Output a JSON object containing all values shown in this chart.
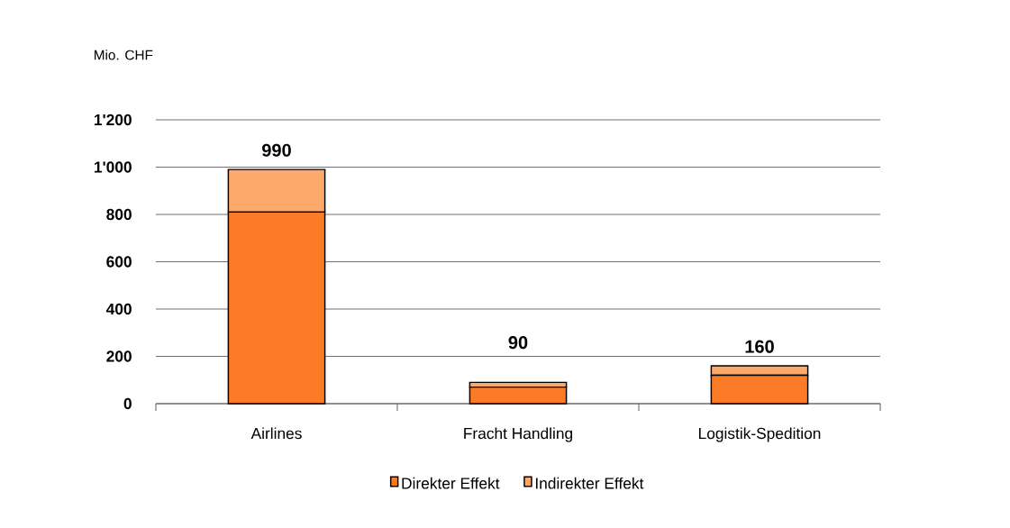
{
  "chart_data": {
    "type": "bar",
    "stacked": true,
    "ylabel": "Mio. CHF",
    "categories": [
      "Airlines",
      "Fracht Handling",
      "Logistik-Spedition"
    ],
    "series": [
      {
        "name": "Direkter Effekt",
        "color": "#fb7b27",
        "values": [
          810,
          70,
          120
        ]
      },
      {
        "name": "Indirekter Effekt",
        "color": "#fda96b",
        "values": [
          180,
          20,
          40
        ]
      }
    ],
    "totals": [
      "990",
      "90",
      "160"
    ],
    "ylim": [
      0,
      1200
    ],
    "yticks": [
      0,
      200,
      400,
      600,
      800,
      {
        "value": 1000,
        "label": "1'000"
      },
      {
        "value": 1200,
        "label": "1'200"
      }
    ],
    "grid": "y",
    "legend": "bottom"
  }
}
